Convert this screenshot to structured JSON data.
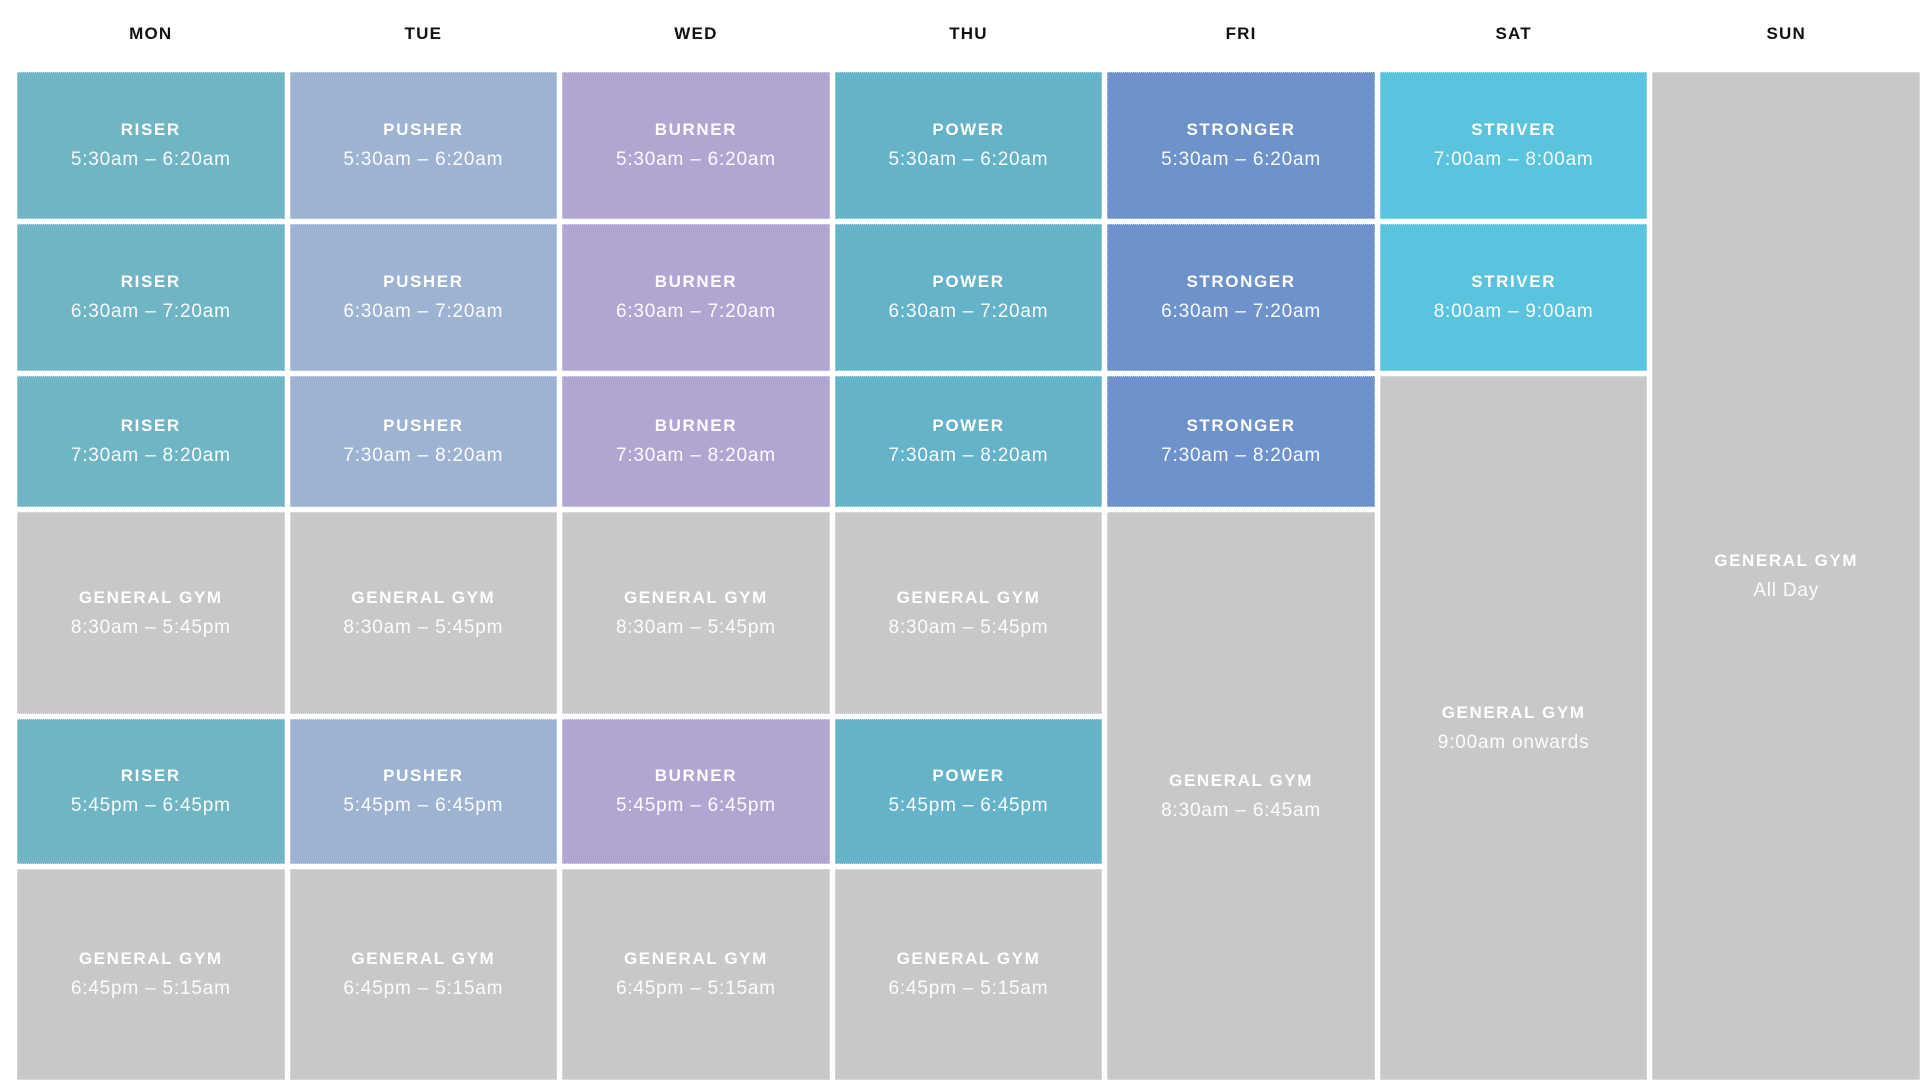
{
  "colors": {
    "riser": "#6FB5C4",
    "pusher": "#9DB3D1",
    "burner": "#B2A5D2",
    "power": "#65B3C9",
    "stronger": "#6E93CC",
    "striver": "#5AC3DE",
    "gym": "#C8C8CB"
  },
  "schedule": {
    "days": [
      {
        "label": "MON",
        "blocks": [
          {
            "name": "RISER",
            "time": "5:30am – 6:20am",
            "color": "riser",
            "row": 1,
            "rowspan": 1
          },
          {
            "name": "RISER",
            "time": "6:30am – 7:20am",
            "color": "riser",
            "row": 2,
            "rowspan": 1
          },
          {
            "name": "RISER",
            "time": "7:30am – 8:20am",
            "color": "riser",
            "row": 3,
            "rowspan": 1
          },
          {
            "name": "GENERAL GYM",
            "time": "8:30am – 5:45pm",
            "color": "gym",
            "row": 4,
            "rowspan": 1
          },
          {
            "name": "RISER",
            "time": "5:45pm – 6:45pm",
            "color": "riser",
            "row": 5,
            "rowspan": 1
          },
          {
            "name": "GENERAL GYM",
            "time": "6:45pm – 5:15am",
            "color": "gym",
            "row": 6,
            "rowspan": 1
          }
        ]
      },
      {
        "label": "TUE",
        "blocks": [
          {
            "name": "PUSHER",
            "time": "5:30am – 6:20am",
            "color": "pusher",
            "row": 1,
            "rowspan": 1
          },
          {
            "name": "PUSHER",
            "time": "6:30am – 7:20am",
            "color": "pusher",
            "row": 2,
            "rowspan": 1
          },
          {
            "name": "PUSHER",
            "time": "7:30am – 8:20am",
            "color": "pusher",
            "row": 3,
            "rowspan": 1
          },
          {
            "name": "GENERAL GYM",
            "time": "8:30am – 5:45pm",
            "color": "gym",
            "row": 4,
            "rowspan": 1
          },
          {
            "name": "PUSHER",
            "time": "5:45pm – 6:45pm",
            "color": "pusher",
            "row": 5,
            "rowspan": 1
          },
          {
            "name": "GENERAL GYM",
            "time": "6:45pm – 5:15am",
            "color": "gym",
            "row": 6,
            "rowspan": 1
          }
        ]
      },
      {
        "label": "WED",
        "blocks": [
          {
            "name": "BURNER",
            "time": "5:30am – 6:20am",
            "color": "burner",
            "row": 1,
            "rowspan": 1
          },
          {
            "name": "BURNER",
            "time": "6:30am – 7:20am",
            "color": "burner",
            "row": 2,
            "rowspan": 1
          },
          {
            "name": "BURNER",
            "time": "7:30am – 8:20am",
            "color": "burner",
            "row": 3,
            "rowspan": 1
          },
          {
            "name": "GENERAL GYM",
            "time": "8:30am – 5:45pm",
            "color": "gym",
            "row": 4,
            "rowspan": 1
          },
          {
            "name": "BURNER",
            "time": "5:45pm – 6:45pm",
            "color": "burner",
            "row": 5,
            "rowspan": 1
          },
          {
            "name": "GENERAL GYM",
            "time": "6:45pm – 5:15am",
            "color": "gym",
            "row": 6,
            "rowspan": 1
          }
        ]
      },
      {
        "label": "THU",
        "blocks": [
          {
            "name": "POWER",
            "time": "5:30am – 6:20am",
            "color": "power",
            "row": 1,
            "rowspan": 1
          },
          {
            "name": "POWER",
            "time": "6:30am – 7:20am",
            "color": "power",
            "row": 2,
            "rowspan": 1
          },
          {
            "name": "POWER",
            "time": "7:30am – 8:20am",
            "color": "power",
            "row": 3,
            "rowspan": 1
          },
          {
            "name": "GENERAL GYM",
            "time": "8:30am – 5:45pm",
            "color": "gym",
            "row": 4,
            "rowspan": 1
          },
          {
            "name": "POWER",
            "time": "5:45pm – 6:45pm",
            "color": "power",
            "row": 5,
            "rowspan": 1
          },
          {
            "name": "GENERAL GYM",
            "time": "6:45pm – 5:15am",
            "color": "gym",
            "row": 6,
            "rowspan": 1
          }
        ]
      },
      {
        "label": "FRI",
        "blocks": [
          {
            "name": "STRONGER",
            "time": "5:30am – 6:20am",
            "color": "stronger",
            "row": 1,
            "rowspan": 1
          },
          {
            "name": "STRONGER",
            "time": "6:30am – 7:20am",
            "color": "stronger",
            "row": 2,
            "rowspan": 1
          },
          {
            "name": "STRONGER",
            "time": "7:30am – 8:20am",
            "color": "stronger",
            "row": 3,
            "rowspan": 1
          },
          {
            "name": "GENERAL GYM",
            "time": "8:30am – 6:45am",
            "color": "gym",
            "row": 4,
            "rowspan": 3
          }
        ]
      },
      {
        "label": "SAT",
        "blocks": [
          {
            "name": "STRIVER",
            "time": "7:00am – 8:00am",
            "color": "striver",
            "row": 1,
            "rowspan": 1
          },
          {
            "name": "STRIVER",
            "time": "8:00am – 9:00am",
            "color": "striver",
            "row": 2,
            "rowspan": 1
          },
          {
            "name": "GENERAL GYM",
            "time": "9:00am onwards",
            "color": "gym",
            "row": 3,
            "rowspan": 4
          }
        ]
      },
      {
        "label": "SUN",
        "blocks": [
          {
            "name": "GENERAL GYM",
            "time": "All Day",
            "color": "gym",
            "row": 1,
            "rowspan": 6
          }
        ]
      }
    ]
  }
}
